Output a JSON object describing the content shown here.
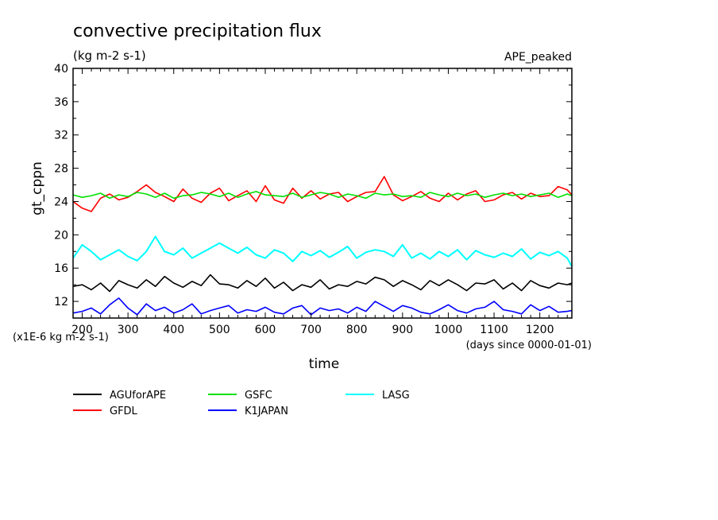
{
  "chart_data": {
    "type": "line",
    "title": "convective precipitation flux",
    "subtitle": "(kg m-2 s-1)",
    "run_label": "APE_peaked",
    "xlabel": "time",
    "ylabel": "gt_cppn",
    "y_unit_note": "(x1E-6 kg m-2 s-1)",
    "x_unit_note": "(days since 0000-01-01)",
    "xlim": [
      180,
      1270
    ],
    "ylim": [
      10,
      40
    ],
    "grid": false,
    "legend_position": "bottom",
    "x_ticks": [
      200,
      300,
      400,
      500,
      600,
      700,
      800,
      900,
      1000,
      1100,
      1200
    ],
    "y_ticks": [
      12,
      16,
      20,
      24,
      28,
      32,
      36,
      40
    ],
    "x": [
      180,
      200,
      220,
      240,
      260,
      280,
      300,
      320,
      340,
      360,
      380,
      400,
      420,
      440,
      460,
      480,
      500,
      520,
      540,
      560,
      580,
      600,
      620,
      640,
      660,
      680,
      700,
      720,
      740,
      760,
      780,
      800,
      820,
      840,
      860,
      880,
      900,
      920,
      940,
      960,
      980,
      1000,
      1020,
      1040,
      1060,
      1080,
      1100,
      1120,
      1140,
      1160,
      1180,
      1200,
      1220,
      1240,
      1260,
      1270
    ],
    "series": [
      {
        "name": "AGUforAPE",
        "color": "#000000",
        "values": [
          13.8,
          14.0,
          13.4,
          14.2,
          13.2,
          14.5,
          14.0,
          13.6,
          14.6,
          13.8,
          15.0,
          14.2,
          13.7,
          14.4,
          13.9,
          15.2,
          14.1,
          14.0,
          13.6,
          14.5,
          13.8,
          14.8,
          13.6,
          14.3,
          13.3,
          14.0,
          13.7,
          14.6,
          13.5,
          14.0,
          13.8,
          14.4,
          14.1,
          14.9,
          14.6,
          13.8,
          14.5,
          14.0,
          13.4,
          14.5,
          13.9,
          14.6,
          14.0,
          13.3,
          14.2,
          14.1,
          14.6,
          13.5,
          14.2,
          13.3,
          14.5,
          13.9,
          13.6,
          14.2,
          14.0,
          14.2
        ]
      },
      {
        "name": "GFDL",
        "color": "#ff0000",
        "values": [
          24.0,
          23.2,
          22.8,
          24.4,
          24.9,
          24.2,
          24.5,
          25.2,
          26.0,
          25.1,
          24.6,
          24.0,
          25.5,
          24.4,
          23.9,
          25.0,
          25.6,
          24.1,
          24.7,
          25.3,
          24.0,
          25.9,
          24.2,
          23.8,
          25.6,
          24.4,
          25.3,
          24.3,
          24.9,
          25.1,
          24.0,
          24.6,
          25.1,
          25.2,
          27.0,
          24.8,
          24.1,
          24.6,
          25.2,
          24.4,
          24.0,
          25.0,
          24.2,
          24.9,
          25.3,
          24.0,
          24.2,
          24.8,
          25.1,
          24.3,
          25.0,
          24.6,
          24.7,
          25.8,
          25.4,
          24.8
        ]
      },
      {
        "name": "GSFC",
        "color": "#00e000",
        "values": [
          24.8,
          24.5,
          24.7,
          25.0,
          24.4,
          24.8,
          24.6,
          25.1,
          24.9,
          24.5,
          25.0,
          24.4,
          24.7,
          24.8,
          25.1,
          24.9,
          24.6,
          25.0,
          24.5,
          24.9,
          25.2,
          24.8,
          24.7,
          24.6,
          25.0,
          24.5,
          24.8,
          25.1,
          24.9,
          24.5,
          24.9,
          24.7,
          24.4,
          25.0,
          24.8,
          24.9,
          24.6,
          24.7,
          24.5,
          25.1,
          24.8,
          24.6,
          25.0,
          24.7,
          24.9,
          24.5,
          24.8,
          25.0,
          24.7,
          24.9,
          24.6,
          24.8,
          25.0,
          24.5,
          24.9,
          24.7
        ]
      },
      {
        "name": "K1JAPAN",
        "color": "#0000ff",
        "values": [
          10.6,
          10.8,
          11.2,
          10.5,
          11.6,
          12.4,
          11.2,
          10.4,
          11.7,
          10.9,
          11.3,
          10.6,
          11.0,
          11.7,
          10.5,
          10.9,
          11.2,
          11.5,
          10.6,
          11.0,
          10.8,
          11.3,
          10.7,
          10.5,
          11.2,
          11.5,
          10.4,
          11.2,
          10.9,
          11.1,
          10.6,
          11.3,
          10.8,
          12.0,
          11.4,
          10.8,
          11.5,
          11.2,
          10.7,
          10.5,
          11.0,
          11.6,
          10.9,
          10.6,
          11.1,
          11.3,
          12.0,
          11.0,
          10.8,
          10.5,
          11.6,
          10.9,
          11.4,
          10.7,
          10.8,
          10.9
        ]
      },
      {
        "name": "LASG",
        "color": "#00ffff",
        "values": [
          17.2,
          18.8,
          18.0,
          17.0,
          17.6,
          18.2,
          17.4,
          16.9,
          18.0,
          19.8,
          18.0,
          17.6,
          18.4,
          17.2,
          17.8,
          18.4,
          19.0,
          18.4,
          17.8,
          18.5,
          17.6,
          17.2,
          18.2,
          17.8,
          16.8,
          18.0,
          17.5,
          18.1,
          17.3,
          17.9,
          18.6,
          17.2,
          17.9,
          18.2,
          18.0,
          17.4,
          18.8,
          17.2,
          17.8,
          17.1,
          18.0,
          17.4,
          18.2,
          17.0,
          18.1,
          17.6,
          17.3,
          17.8,
          17.4,
          18.3,
          17.1,
          17.9,
          17.5,
          18.0,
          17.2,
          16.2
        ]
      }
    ]
  }
}
